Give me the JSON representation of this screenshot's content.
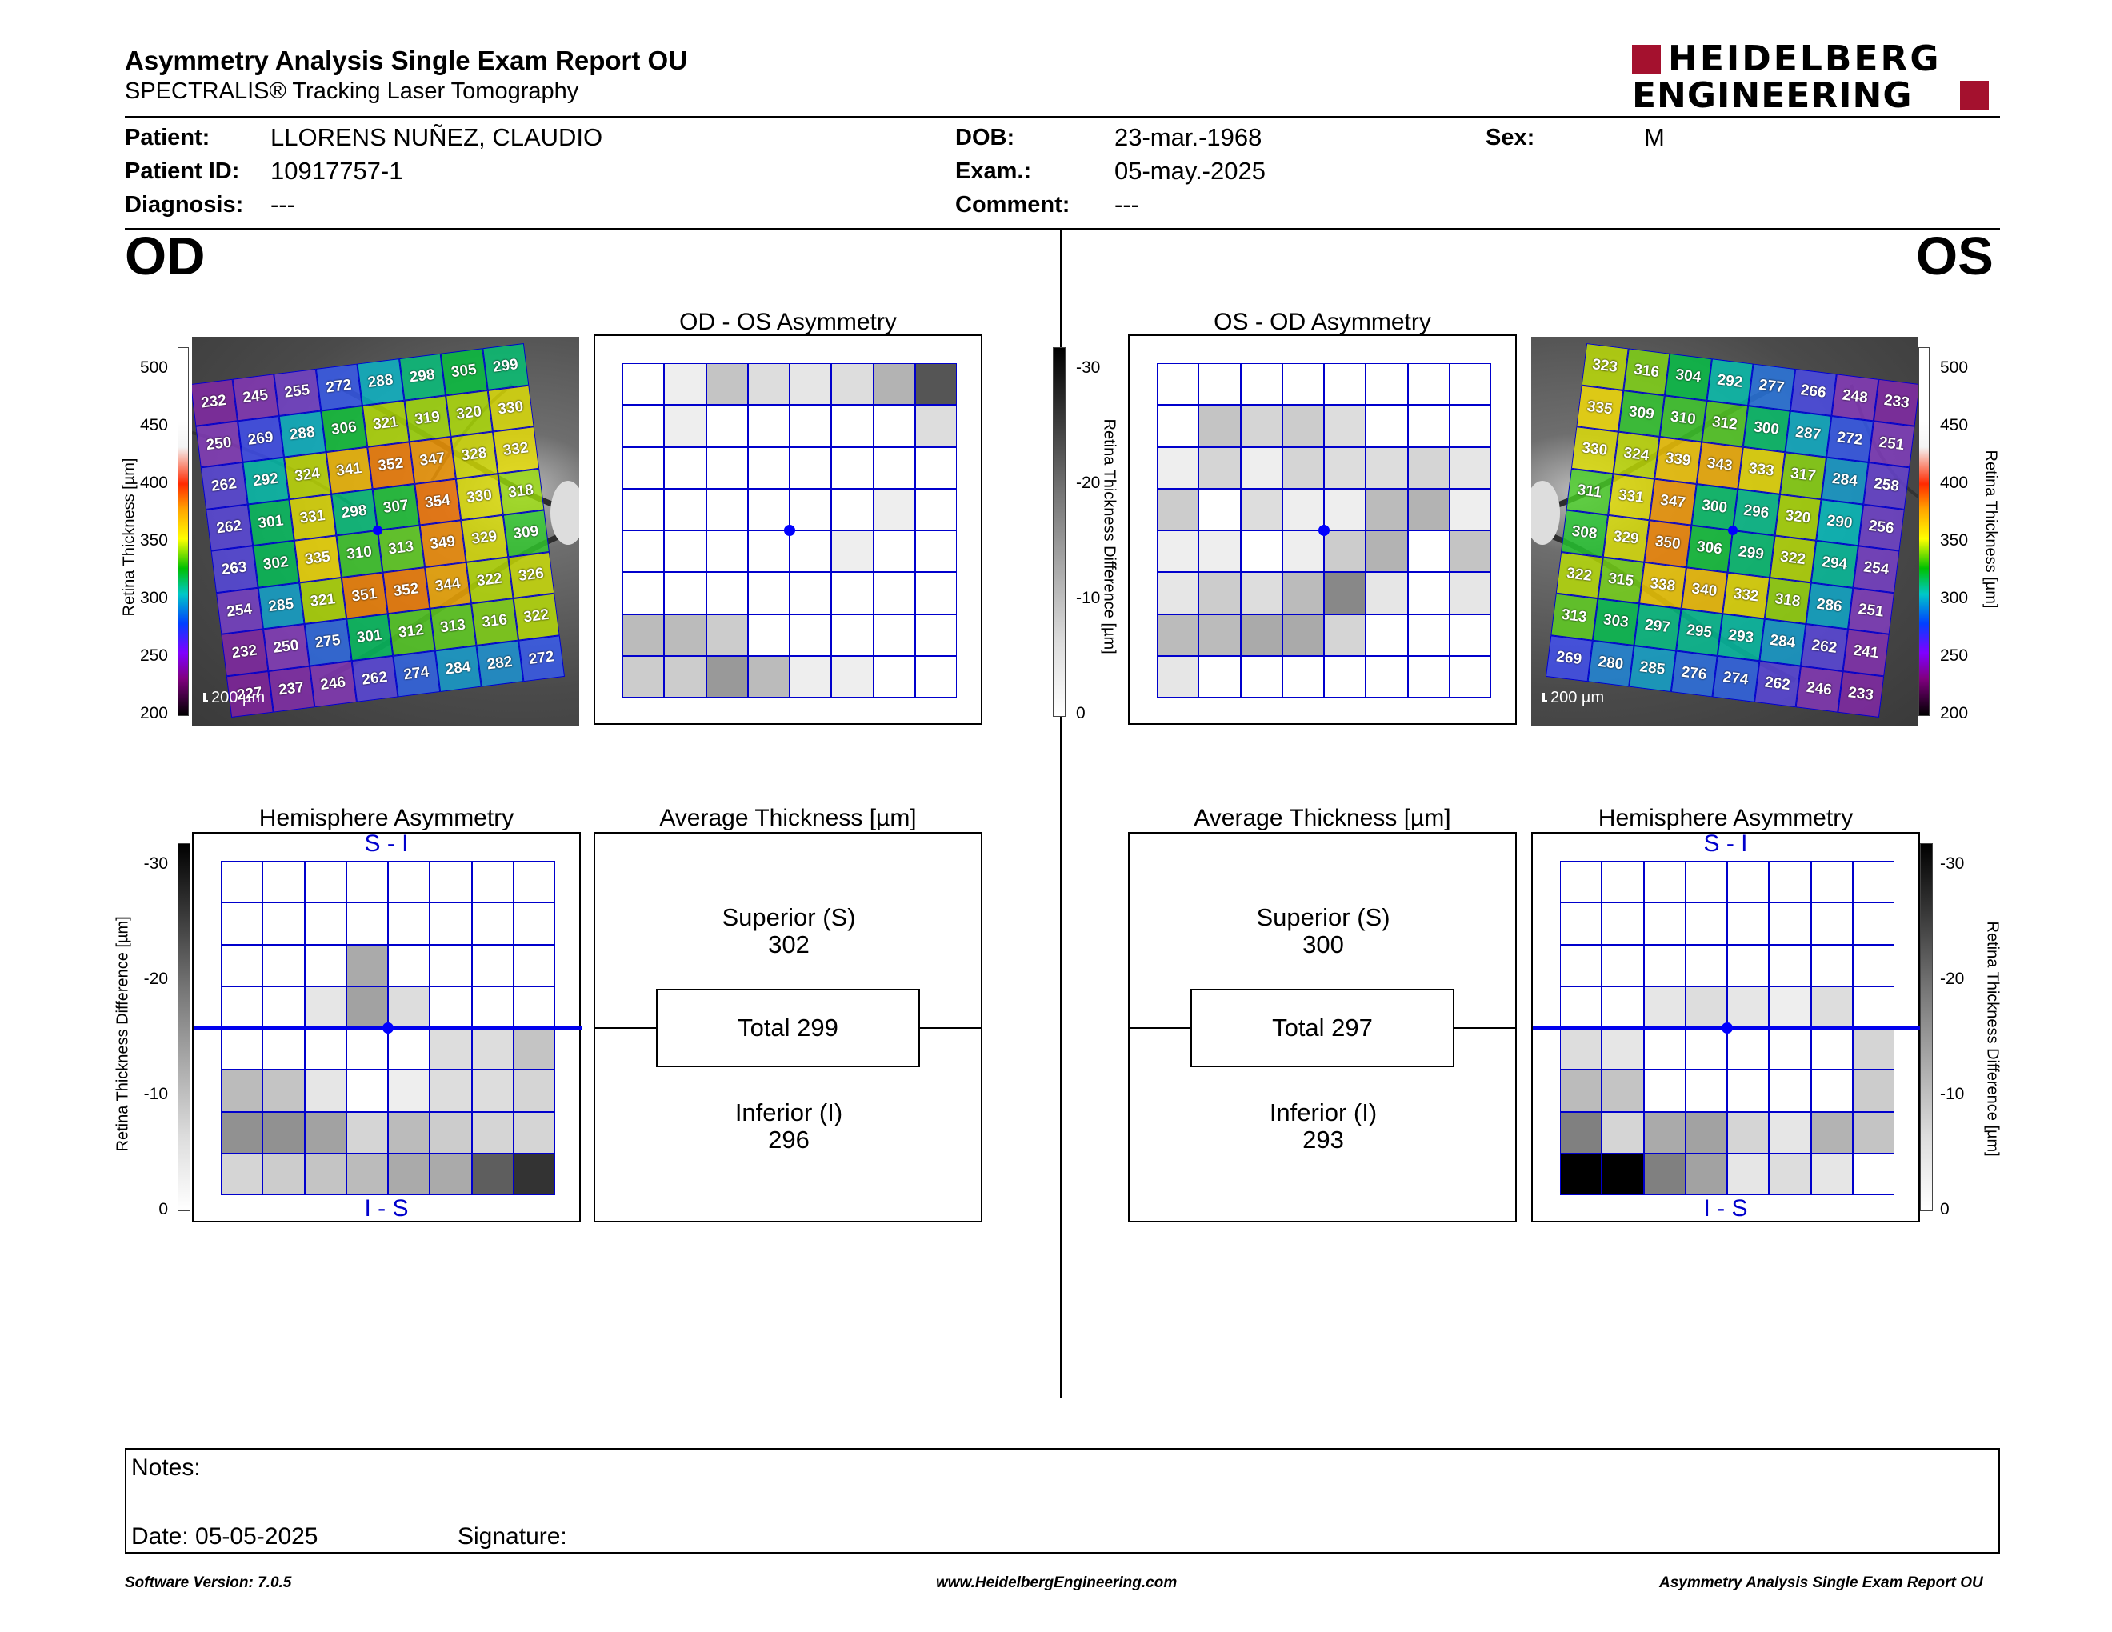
{
  "header": {
    "title": "Asymmetry Analysis Single Exam Report OU",
    "subtitle": "SPECTRALIS® Tracking Laser Tomography",
    "logo_line1": "HEIDELBERG",
    "logo_line2": "ENGINEERING",
    "logo_color": "#a4112e"
  },
  "patient": {
    "patient_label": "Patient:",
    "patient_value": "LLORENS NUÑEZ, CLAUDIO",
    "id_label": "Patient ID:",
    "id_value": "10917757-1",
    "diagnosis_label": "Diagnosis:",
    "diagnosis_value": "---",
    "dob_label": "DOB:",
    "dob_value": "23-mar.-1968",
    "exam_label": "Exam.:",
    "exam_value": "05-may.-2025",
    "comment_label": "Comment:",
    "comment_value": "---",
    "sex_label": "Sex:",
    "sex_value": "M"
  },
  "od": {
    "label": "OD",
    "asym_title": "OD - OS Asymmetry",
    "hemi_title": "Hemisphere Asymmetry",
    "avg_title": "Average Thickness [µm]",
    "superior_label": "Superior (S)",
    "superior_value": "302",
    "total_label": "Total 299",
    "inferior_label": "Inferior (I)",
    "inferior_value": "296",
    "hemi_top": "S - I",
    "hemi_bottom": "I - S",
    "scalebar": "200 µm",
    "thickness": [
      [
        232,
        245,
        255,
        272,
        288,
        298,
        305,
        299
      ],
      [
        250,
        269,
        288,
        306,
        321,
        319,
        320,
        330
      ],
      [
        262,
        292,
        324,
        341,
        352,
        347,
        328,
        332
      ],
      [
        262,
        301,
        331,
        298,
        307,
        354,
        330,
        318
      ],
      [
        263,
        302,
        335,
        310,
        313,
        349,
        329,
        309
      ],
      [
        254,
        285,
        321,
        351,
        352,
        344,
        322,
        326
      ],
      [
        232,
        250,
        275,
        301,
        312,
        313,
        316,
        322
      ],
      [
        227,
        237,
        246,
        262,
        274,
        284,
        282,
        272
      ]
    ],
    "asym_shades": [
      [
        0,
        2,
        7,
        4,
        3,
        4,
        9,
        20
      ],
      [
        0,
        2,
        0,
        0,
        0,
        0,
        0,
        4
      ],
      [
        0,
        0,
        0,
        0,
        0,
        0,
        0,
        0
      ],
      [
        0,
        0,
        0,
        0,
        0,
        0,
        2,
        0
      ],
      [
        0,
        0,
        0,
        0,
        0,
        2,
        0,
        0
      ],
      [
        0,
        0,
        0,
        0,
        0,
        0,
        0,
        0
      ],
      [
        8,
        8,
        6,
        0,
        0,
        0,
        0,
        0
      ],
      [
        6,
        6,
        12,
        8,
        2,
        2,
        0,
        0
      ]
    ],
    "hemi_shades": [
      [
        0,
        0,
        0,
        0,
        0,
        0,
        0,
        0
      ],
      [
        0,
        0,
        0,
        0,
        0,
        0,
        0,
        0
      ],
      [
        0,
        0,
        0,
        10,
        0,
        0,
        0,
        0
      ],
      [
        0,
        0,
        3,
        11,
        4,
        0,
        0,
        0
      ],
      [
        0,
        0,
        0,
        0,
        0,
        4,
        4,
        7
      ],
      [
        8,
        7,
        3,
        0,
        2,
        4,
        4,
        5
      ],
      [
        13,
        13,
        11,
        5,
        8,
        6,
        5,
        5
      ],
      [
        5,
        6,
        7,
        8,
        10,
        10,
        19,
        24
      ]
    ]
  },
  "os": {
    "label": "OS",
    "asym_title": "OS - OD Asymmetry",
    "hemi_title": "Hemisphere Asymmetry",
    "avg_title": "Average Thickness [µm]",
    "superior_label": "Superior (S)",
    "superior_value": "300",
    "total_label": "Total 297",
    "inferior_label": "Inferior (I)",
    "inferior_value": "293",
    "hemi_top": "S - I",
    "hemi_bottom": "I - S",
    "scalebar": "200 µm",
    "thickness": [
      [
        323,
        316,
        304,
        292,
        277,
        266,
        248,
        233
      ],
      [
        335,
        309,
        310,
        312,
        300,
        287,
        272,
        251
      ],
      [
        330,
        324,
        339,
        343,
        333,
        317,
        284,
        258
      ],
      [
        311,
        331,
        347,
        300,
        296,
        320,
        290,
        256
      ],
      [
        308,
        329,
        350,
        306,
        299,
        322,
        294,
        254
      ],
      [
        322,
        315,
        338,
        340,
        332,
        318,
        286,
        251
      ],
      [
        313,
        303,
        297,
        295,
        293,
        284,
        262,
        241
      ],
      [
        269,
        280,
        285,
        276,
        274,
        262,
        246,
        233
      ]
    ],
    "asym_shades": [
      [
        0,
        0,
        0,
        0,
        0,
        0,
        0,
        0
      ],
      [
        0,
        7,
        5,
        6,
        4,
        0,
        0,
        0
      ],
      [
        2,
        5,
        2,
        5,
        4,
        4,
        5,
        3
      ],
      [
        6,
        0,
        4,
        2,
        2,
        8,
        9,
        2
      ],
      [
        2,
        2,
        0,
        2,
        6,
        9,
        0,
        7
      ],
      [
        3,
        6,
        4,
        8,
        14,
        3,
        0,
        3
      ],
      [
        8,
        8,
        10,
        10,
        5,
        0,
        0,
        0
      ],
      [
        3,
        0,
        0,
        0,
        0,
        0,
        0,
        0
      ]
    ],
    "hemi_shades": [
      [
        0,
        0,
        0,
        0,
        0,
        0,
        0,
        0
      ],
      [
        0,
        0,
        0,
        0,
        0,
        0,
        0,
        0
      ],
      [
        0,
        0,
        0,
        0,
        0,
        0,
        0,
        0
      ],
      [
        0,
        0,
        3,
        4,
        3,
        2,
        4,
        0
      ],
      [
        4,
        3,
        0,
        0,
        0,
        0,
        0,
        5
      ],
      [
        8,
        7,
        0,
        0,
        0,
        0,
        0,
        6
      ],
      [
        15,
        5,
        10,
        11,
        5,
        3,
        9,
        7
      ],
      [
        30,
        30,
        15,
        11,
        3,
        4,
        3,
        0
      ]
    ]
  },
  "scales": {
    "thickness_label": "Retina  Thickness [µm]",
    "thickness_ticks": [
      "500",
      "450",
      "400",
      "350",
      "300",
      "250",
      "200"
    ],
    "diff_label": "Retina Thickness Difference [µm]",
    "diff_ticks": [
      "-30",
      "-20",
      "-10",
      "0"
    ]
  },
  "notes": {
    "notes_label": "Notes:",
    "date_label": "Date: 05-05-2025",
    "signature_label": "Signature:"
  },
  "footer": {
    "left": "Software Version: 7.0.5",
    "center": "www.HeidelbergEngineering.com",
    "right": "Asymmetry Analysis Single Exam Report OU"
  }
}
